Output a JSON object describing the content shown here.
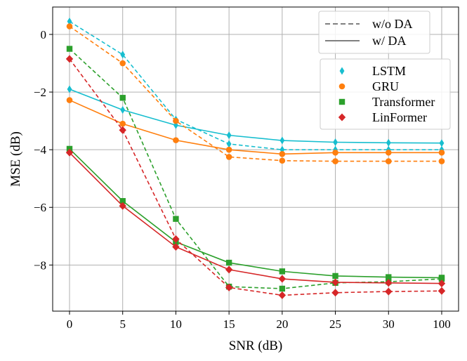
{
  "chart_data": {
    "type": "line",
    "categories": [
      "0",
      "5",
      "10",
      "15",
      "20",
      "25",
      "30",
      "100"
    ],
    "xlabel": "SNR (dB)",
    "ylabel": "MSE (dB)",
    "ylim": [
      -9.6,
      0.95
    ],
    "yticks": [
      0,
      -2,
      -4,
      -6,
      -8
    ],
    "ytick_labels": [
      "0",
      "−2",
      "−4",
      "−6",
      "−8"
    ],
    "grid": true,
    "style_legend": {
      "placement": "top-right",
      "entries": [
        {
          "label": "w/o DA",
          "dash": "dashed"
        },
        {
          "label": "w/ DA",
          "dash": "solid"
        }
      ]
    },
    "model_legend": {
      "placement": "upper-right",
      "entries": [
        {
          "label": "LSTM",
          "color": "#17becf",
          "marker": "diamond-thin"
        },
        {
          "label": "GRU",
          "color": "#ff7f0e",
          "marker": "circle"
        },
        {
          "label": "Transformer",
          "color": "#2ca02c",
          "marker": "square"
        },
        {
          "label": "LinFormer",
          "color": "#d62728",
          "marker": "diamond"
        }
      ]
    },
    "series": [
      {
        "name": "LSTM",
        "da": "w/o DA",
        "dash": "dashed",
        "color": "#17becf",
        "marker": "diamond-thin",
        "values": [
          0.45,
          -0.7,
          -2.95,
          -3.8,
          -4.0,
          -4.0,
          -4.0,
          -4.0
        ]
      },
      {
        "name": "LSTM",
        "da": "w/ DA",
        "dash": "solid",
        "color": "#17becf",
        "marker": "diamond-thin",
        "values": [
          -1.9,
          -2.62,
          -3.15,
          -3.5,
          -3.68,
          -3.74,
          -3.76,
          -3.77
        ]
      },
      {
        "name": "GRU",
        "da": "w/o DA",
        "dash": "dashed",
        "color": "#ff7f0e",
        "marker": "circle",
        "values": [
          0.28,
          -1.0,
          -3.0,
          -4.25,
          -4.38,
          -4.4,
          -4.4,
          -4.4
        ]
      },
      {
        "name": "GRU",
        "da": "w/ DA",
        "dash": "solid",
        "color": "#ff7f0e",
        "marker": "circle",
        "values": [
          -2.28,
          -3.1,
          -3.67,
          -4.0,
          -4.15,
          -4.1,
          -4.1,
          -4.1
        ]
      },
      {
        "name": "Transformer",
        "da": "w/o DA",
        "dash": "dashed",
        "color": "#2ca02c",
        "marker": "square",
        "values": [
          -0.5,
          -2.2,
          -6.4,
          -8.75,
          -8.82,
          -8.62,
          -8.58,
          -8.48
        ]
      },
      {
        "name": "Transformer",
        "da": "w/ DA",
        "dash": "solid",
        "color": "#2ca02c",
        "marker": "square",
        "values": [
          -3.97,
          -5.78,
          -7.2,
          -7.92,
          -8.22,
          -8.38,
          -8.42,
          -8.44
        ]
      },
      {
        "name": "LinFormer",
        "da": "w/o DA",
        "dash": "dashed",
        "color": "#d62728",
        "marker": "diamond",
        "values": [
          -0.85,
          -3.32,
          -7.1,
          -8.78,
          -9.05,
          -8.96,
          -8.92,
          -8.9
        ]
      },
      {
        "name": "LinFormer",
        "da": "w/ DA",
        "dash": "solid",
        "color": "#d62728",
        "marker": "diamond",
        "values": [
          -4.1,
          -5.95,
          -7.37,
          -8.16,
          -8.48,
          -8.6,
          -8.62,
          -8.64
        ]
      }
    ]
  }
}
